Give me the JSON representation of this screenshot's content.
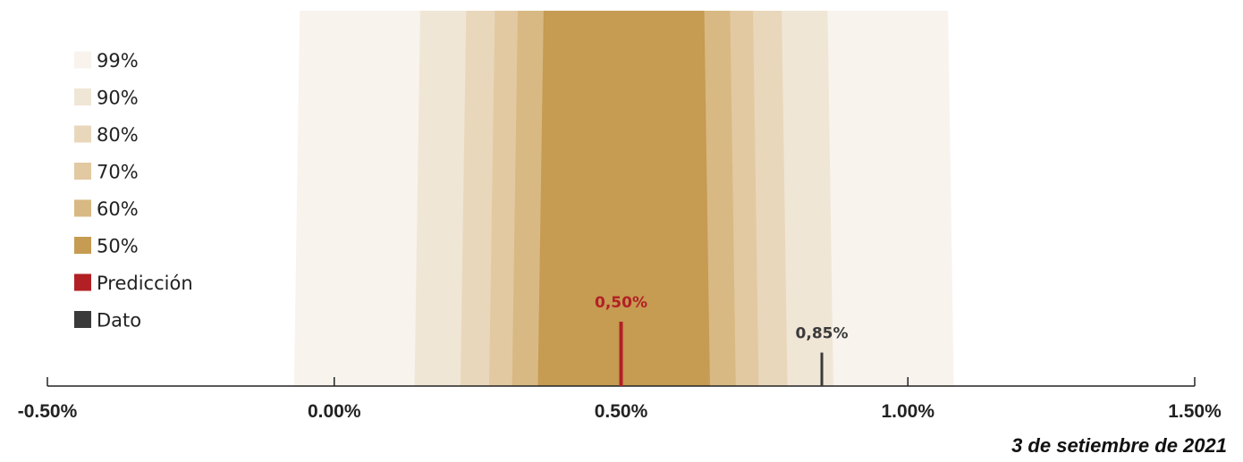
{
  "chart_data": {
    "type": "fan",
    "xlim": [
      -0.5,
      1.5
    ],
    "x_ticks": [
      -0.5,
      0.0,
      0.5,
      1.0,
      1.5
    ],
    "x_tick_labels": [
      "-0.50%",
      "0.00%",
      "0.50%",
      "1.00%",
      "1.50%"
    ],
    "intervals": [
      {
        "name": "99%",
        "bottom": [
          -0.07,
          1.08
        ],
        "top": [
          -0.06,
          1.07
        ],
        "color": "#f8f3ed"
      },
      {
        "name": "90%",
        "bottom": [
          0.14,
          0.87
        ],
        "top": [
          0.15,
          0.86
        ],
        "color": "#f0e6d6"
      },
      {
        "name": "80%",
        "bottom": [
          0.22,
          0.79
        ],
        "top": [
          0.23,
          0.78
        ],
        "color": "#e9d7bc"
      },
      {
        "name": "70%",
        "bottom": [
          0.27,
          0.74
        ],
        "top": [
          0.28,
          0.73
        ],
        "color": "#e2c9a1"
      },
      {
        "name": "60%",
        "bottom": [
          0.31,
          0.7
        ],
        "top": [
          0.32,
          0.69
        ],
        "color": "#d8b983"
      },
      {
        "name": "50%",
        "bottom": [
          0.355,
          0.655
        ],
        "top": [
          0.365,
          0.645
        ],
        "color": "#c69b52"
      }
    ],
    "markers": [
      {
        "name": "Predicción",
        "value": 0.5,
        "label": "0,50%",
        "color": "#b22025",
        "height": 1.0
      },
      {
        "name": "Dato",
        "value": 0.85,
        "label": "0,85%",
        "color": "#3a3a3a",
        "height": 0.52
      }
    ],
    "legend_position": "top-left",
    "footnote": "3 de setiembre de 2021"
  }
}
